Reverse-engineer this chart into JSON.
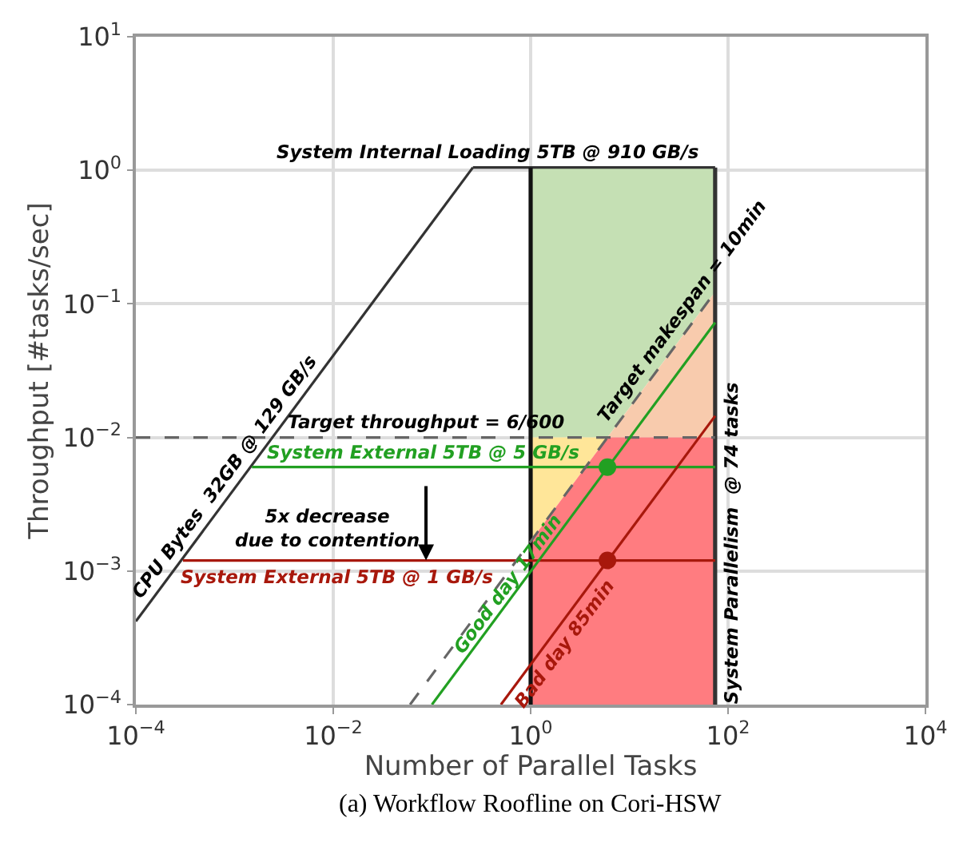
{
  "chart_data": {
    "type": "line",
    "xlabel": "Number of Parallel Tasks",
    "ylabel": "Throughput [#tasks/sec]",
    "log": "xy",
    "grid": true,
    "legend": false,
    "marker": "none",
    "line_style": "solid",
    "xlim": [
      0.0001,
      10000
    ],
    "xticks": [
      {
        "value": 0.0001,
        "label": "10$^{−4}$"
      },
      {
        "value": 0.01,
        "label": "10$^{−2}$"
      },
      {
        "value": 1,
        "label": "10$^{0}$"
      },
      {
        "value": 100,
        "label": "10$^{2}$"
      },
      {
        "value": 10000,
        "label": "10$^{4}$"
      }
    ],
    "ylim": [
      0.0001,
      10
    ],
    "yticks": [
      {
        "value": 0.0001,
        "label": "10$^{−4}$"
      },
      {
        "value": 0.001,
        "label": "10$^{−3}$"
      },
      {
        "value": 0.01,
        "label": "10$^{−2}$"
      },
      {
        "value": 0.1,
        "label": "10$^{−1}$"
      },
      {
        "value": 1,
        "label": "10$^{0}$"
      },
      {
        "value": 10,
        "label": "10$^{1}$"
      }
    ],
    "series": [
      {
        "type": "area",
        "color": "#c5e0b4",
        "x": [
          1,
          74,
          74,
          6,
          1
        ],
        "values": [
          1.05,
          1.05,
          0.123,
          0.01,
          0.01
        ]
      },
      {
        "type": "area",
        "color": "#f8cbad",
        "x": [
          6,
          74,
          74
        ],
        "values": [
          0.01,
          0.123,
          0.01
        ]
      },
      {
        "type": "area",
        "color": "#ffe699",
        "x": [
          1,
          6,
          1
        ],
        "values": [
          0.01,
          0.01,
          0.00167
        ]
      },
      {
        "type": "area",
        "color": "#ff7c80",
        "x": [
          1,
          6,
          74,
          74,
          1
        ],
        "values": [
          0.00167,
          0.01,
          0.01,
          0.0001,
          0.0001
        ]
      },
      {
        "name": "CPU Bytes  32GB @ 129 GB/s",
        "color": "#333333",
        "x": [
          0.0001,
          0.26
        ],
        "values": [
          0.00042,
          1.05
        ]
      },
      {
        "name": "System Internal Loading 5TB @ 910 GB/s",
        "color": "#333333",
        "x": [
          0.26,
          74
        ],
        "values": [
          1.05,
          1.05
        ]
      },
      {
        "color": "#111111",
        "x": [
          1,
          1
        ],
        "values": [
          0.0001,
          1.05
        ]
      },
      {
        "name": "System Parallelism  @ 74 tasks",
        "color": "#333333",
        "x": [
          74,
          74
        ],
        "values": [
          0.0001,
          1.05
        ]
      },
      {
        "name": "Target throughput = 6/600",
        "color": "#666666",
        "line_style": "dashed",
        "x": [
          0.0001,
          74
        ],
        "values": [
          0.01,
          0.01
        ]
      },
      {
        "name": "System External 5TB @ 5 GB/s",
        "color": "#22a022",
        "x": [
          0.0015,
          74
        ],
        "values": [
          0.006,
          0.006
        ]
      },
      {
        "name": "System External 5TB @ 1 GB/s",
        "color": "#a8180c",
        "x": [
          0.0003,
          74
        ],
        "values": [
          0.0012,
          0.0012
        ]
      },
      {
        "name": "Target makespan = 10min",
        "color": "#666666",
        "line_style": "dashed",
        "x": [
          0.06,
          74
        ],
        "values": [
          0.0001,
          0.123
        ]
      },
      {
        "name": "Good day 17min",
        "color": "#22a022",
        "x": [
          0.1,
          74
        ],
        "values": [
          0.0001,
          0.0725
        ]
      },
      {
        "name": "Bad day 85min",
        "color": "#a8180c",
        "x": [
          0.5,
          74
        ],
        "values": [
          0.0001,
          0.0145
        ]
      },
      {
        "type": "scatter",
        "marker": "circle",
        "colors": [
          "#22a022",
          "#a8180c"
        ],
        "x": [
          6,
          6
        ],
        "values": [
          0.006,
          0.0012
        ]
      }
    ],
    "annotations": [
      {
        "text": "5x decrease\ndue to contention",
        "x": 0.087,
        "y": 0.0012
      },
      "(a) Workflow Roofline on Cori-HSW"
    ]
  }
}
